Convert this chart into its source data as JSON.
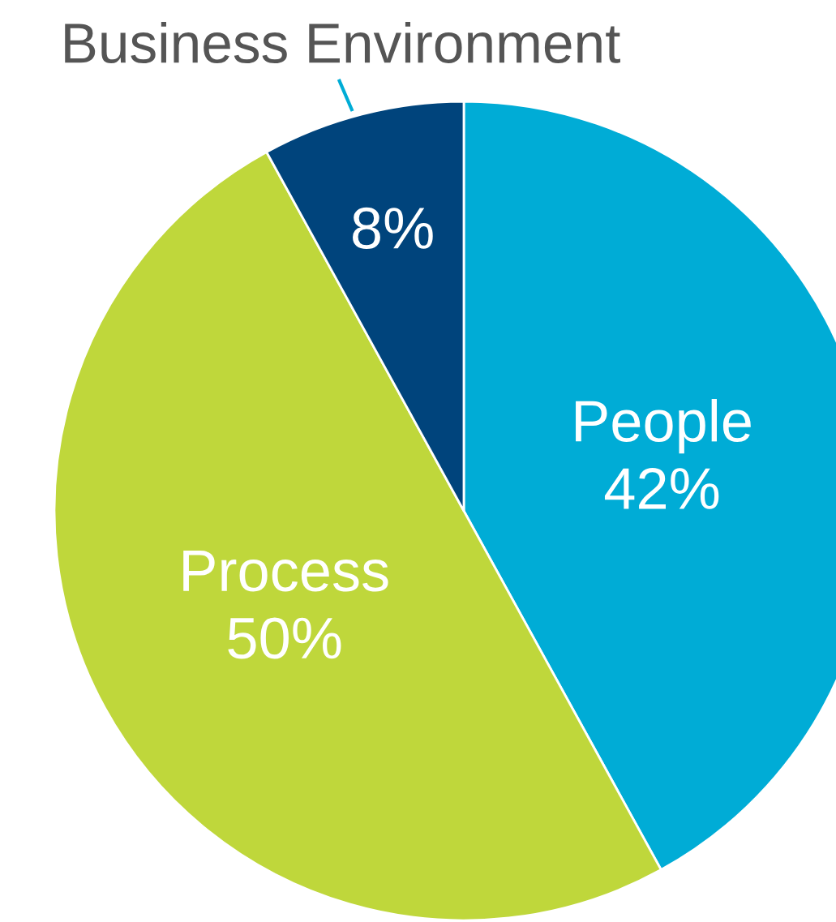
{
  "chart_data": {
    "type": "pie",
    "categories": [
      "People",
      "Process",
      "Business Environment"
    ],
    "values": [
      42,
      50,
      8
    ],
    "colors": [
      "#00acd6",
      "#bfd73b",
      "#00447c"
    ],
    "value_labels": [
      "42%",
      "50%",
      "8%"
    ],
    "legend": false
  }
}
